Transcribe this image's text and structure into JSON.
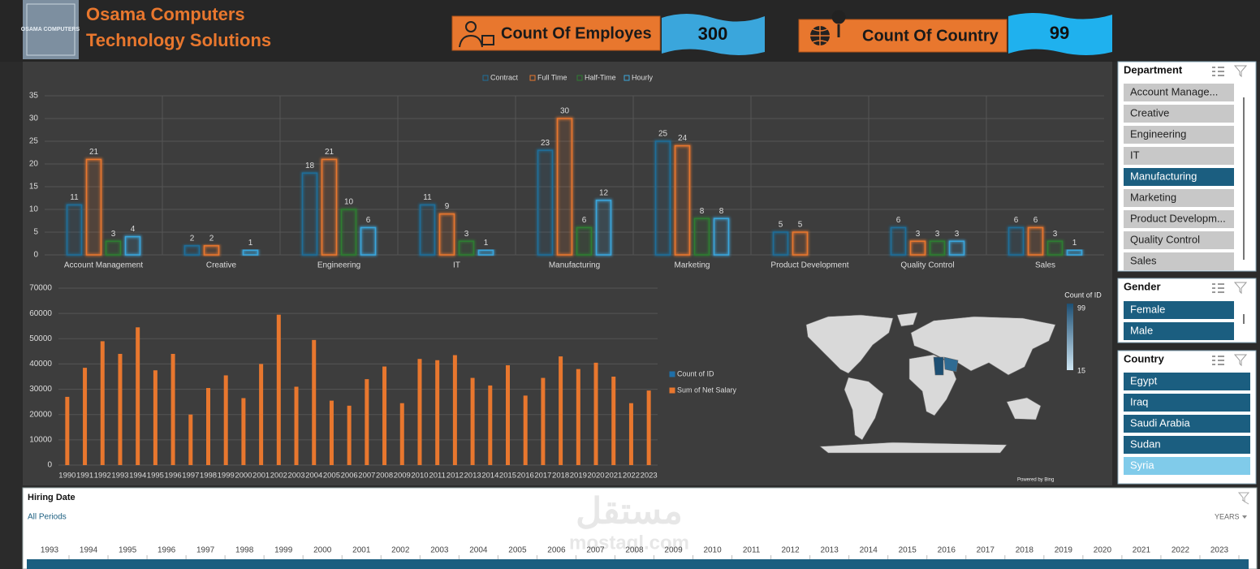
{
  "header": {
    "title_line1": "Osama Computers",
    "title_line2": "Technology Solutions",
    "logo_text": "OSAMA COMPUTERS"
  },
  "kpis": [
    {
      "label": "Count Of Employes",
      "value": 300
    },
    {
      "label": "Count Of Country",
      "value": 99
    }
  ],
  "chart_data": [
    {
      "type": "bar",
      "legend": "top",
      "grid": true,
      "categories": [
        "Account Management",
        "Creative",
        "Engineering",
        "IT",
        "Manufacturing",
        "Marketing",
        "Product Development",
        "Quality Control",
        "Sales"
      ],
      "series": [
        {
          "name": "Contract",
          "color": "#1f6e99",
          "values": [
            11,
            2,
            18,
            11,
            23,
            25,
            5,
            6,
            6
          ]
        },
        {
          "name": "Full Time",
          "color": "#e8772e",
          "values": [
            21,
            2,
            21,
            9,
            30,
            24,
            5,
            3,
            6
          ]
        },
        {
          "name": "Half-Time",
          "color": "#2e7d32",
          "values": [
            3,
            null,
            10,
            3,
            6,
            8,
            null,
            3,
            3
          ]
        },
        {
          "name": "Hourly",
          "color": "#3aa6dc",
          "values": [
            4,
            1,
            6,
            1,
            12,
            8,
            null,
            3,
            1
          ]
        }
      ],
      "ylim": [
        0,
        35
      ],
      "yticks": [
        0,
        5,
        10,
        15,
        20,
        25,
        30,
        35
      ]
    },
    {
      "type": "bar",
      "legend": "right",
      "grid": true,
      "categories": [
        "1990",
        "1991",
        "1992",
        "1993",
        "1994",
        "1995",
        "1996",
        "1997",
        "1998",
        "1999",
        "2000",
        "2001",
        "2002",
        "2003",
        "2004",
        "2005",
        "2006",
        "2007",
        "2008",
        "2009",
        "2010",
        "2011",
        "2012",
        "2013",
        "2014",
        "2015",
        "2016",
        "2017",
        "2018",
        "2019",
        "2020",
        "2021",
        "2022",
        "2023"
      ],
      "extra_legend": [
        {
          "name": "Count of ID",
          "color": "#1f6fa8"
        }
      ],
      "series": [
        {
          "name": "Sum of Net Salary",
          "color": "#e8772e",
          "values": [
            27000,
            38500,
            49000,
            44000,
            54500,
            37500,
            44000,
            20000,
            30500,
            35500,
            26500,
            40000,
            59500,
            31000,
            49500,
            25500,
            23500,
            34000,
            39000,
            24500,
            42000,
            41500,
            43500,
            34500,
            31500,
            39500,
            27500,
            34500,
            43000,
            38000,
            40500,
            35000,
            24500,
            29500
          ]
        }
      ],
      "ylim": [
        0,
        70000
      ],
      "yticks": [
        0,
        10000,
        20000,
        30000,
        40000,
        50000,
        60000,
        70000
      ]
    }
  ],
  "map": {
    "legend_title": "Count of ID",
    "max": 99,
    "min": 15,
    "credit": "Powered by Bing"
  },
  "slicers": [
    {
      "title": "Department",
      "selected_color": "#1b5e80",
      "unselected_color": "#c8c8c8",
      "items": [
        {
          "label": "Account Manage...",
          "selected": false
        },
        {
          "label": "Creative",
          "selected": false
        },
        {
          "label": "Engineering",
          "selected": false
        },
        {
          "label": "IT",
          "selected": false
        },
        {
          "label": "Manufacturing",
          "selected": true
        },
        {
          "label": "Marketing",
          "selected": false
        },
        {
          "label": "Product Developm...",
          "selected": false
        },
        {
          "label": "Quality Control",
          "selected": false
        },
        {
          "label": "Sales",
          "selected": false
        }
      ]
    },
    {
      "title": "Gender",
      "selected_color": "#1b5e80",
      "unselected_color": "#c8c8c8",
      "items": [
        {
          "label": "Female",
          "selected": true
        },
        {
          "label": "Male",
          "selected": true
        }
      ]
    },
    {
      "title": "Country",
      "selected_color": "#1b5e80",
      "unselected_color": "#80cbea",
      "items": [
        {
          "label": "Egypt",
          "selected": true
        },
        {
          "label": "Iraq",
          "selected": true
        },
        {
          "label": "Saudi Arabia",
          "selected": true
        },
        {
          "label": "Sudan",
          "selected": true
        },
        {
          "label": "Syria",
          "selected": false
        }
      ]
    }
  ],
  "timeline": {
    "title": "Hiring Date",
    "period": "All Periods",
    "unit": "YEARS",
    "years": [
      1993,
      1994,
      1995,
      1996,
      1997,
      1998,
      1999,
      2000,
      2001,
      2002,
      2003,
      2004,
      2005,
      2006,
      2007,
      2008,
      2009,
      2010,
      2011,
      2012,
      2013,
      2014,
      2015,
      2016,
      2017,
      2018,
      2019,
      2020,
      2021,
      2022,
      2023
    ]
  },
  "watermark": {
    "arabic": "مستقل",
    "latin": "mostaql.com"
  }
}
